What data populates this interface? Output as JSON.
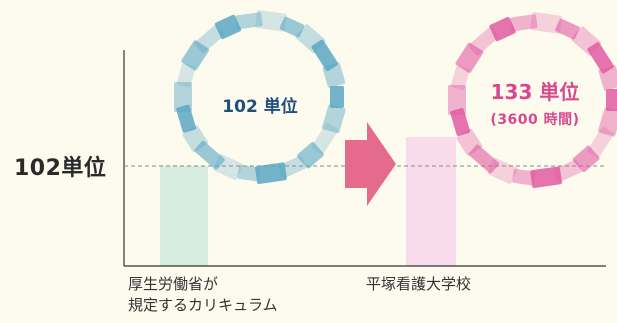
{
  "chart_data": {
    "type": "bar",
    "categories_line1": [
      "厚生労働省が",
      "平塚看護大学校"
    ],
    "categories_line2": [
      "規定するカリキュラム",
      ""
    ],
    "values": [
      102,
      133
    ],
    "reference_line": {
      "value": 102,
      "label": "102単位"
    },
    "bubbles": [
      {
        "value_label": "102 単位",
        "sub_label": ""
      },
      {
        "value_label": "133 単位",
        "sub_label": "(3600 時間)"
      }
    ],
    "ylim": [
      0,
      160
    ],
    "grid": false,
    "colors": {
      "bar1": "#d7ede0",
      "bar2": "#f9dcec",
      "ring1": "#5aa7c4",
      "ring2": "#e05aa2",
      "arrow": "#e56b8d",
      "axis": "#333333",
      "dashed": "#888888"
    }
  }
}
